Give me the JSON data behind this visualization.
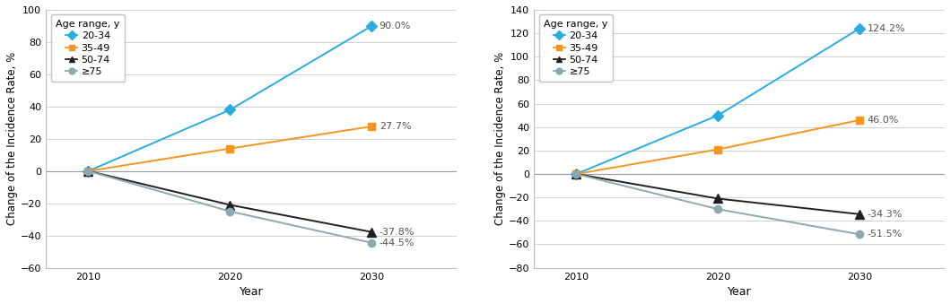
{
  "years": [
    2010,
    2020,
    2030
  ],
  "left_chart": {
    "ylabel": "Change of the Incidence Rate, %",
    "xlabel": "Year",
    "ylim": [
      -60,
      100
    ],
    "yticks": [
      -60,
      -40,
      -20,
      0,
      20,
      40,
      60,
      80,
      100
    ],
    "xlim": [
      2007,
      2036
    ],
    "series": [
      {
        "label": "20-34",
        "values": [
          0,
          38,
          90.0
        ],
        "color": "#29ABE2",
        "marker": "D",
        "marker_size": 6
      },
      {
        "label": "35-49",
        "values": [
          0,
          14,
          27.7
        ],
        "color": "#F7941D",
        "marker": "s",
        "marker_size": 6
      },
      {
        "label": "50-74",
        "values": [
          0,
          -21,
          -37.8
        ],
        "color": "#231F20",
        "marker": "^",
        "marker_size": 7
      },
      {
        "label": "≥75",
        "values": [
          0,
          -25,
          -44.5
        ],
        "color": "#8DA9B0",
        "marker": "o",
        "marker_size": 6
      }
    ],
    "annotations": [
      {
        "text": "90.0%",
        "y": 90.0
      },
      {
        "text": "27.7%",
        "y": 27.7
      },
      {
        "text": "-37.8%",
        "y": -37.8
      },
      {
        "text": "-44.5%",
        "y": -44.5
      }
    ]
  },
  "right_chart": {
    "ylabel": "Change of the Incidence Rate, %",
    "xlabel": "Year",
    "ylim": [
      -80,
      140
    ],
    "yticks": [
      -80,
      -60,
      -40,
      -20,
      0,
      20,
      40,
      60,
      80,
      100,
      120,
      140
    ],
    "xlim": [
      2007,
      2036
    ],
    "series": [
      {
        "label": "20-34",
        "values": [
          0,
          50,
          124.2
        ],
        "color": "#29ABE2",
        "marker": "D",
        "marker_size": 6
      },
      {
        "label": "35-49",
        "values": [
          0,
          21,
          46.0
        ],
        "color": "#F7941D",
        "marker": "s",
        "marker_size": 6
      },
      {
        "label": "50-74",
        "values": [
          0,
          -21,
          -34.3
        ],
        "color": "#231F20",
        "marker": "^",
        "marker_size": 7
      },
      {
        "label": "≥75",
        "values": [
          0,
          -30,
          -51.5
        ],
        "color": "#8DA9B0",
        "marker": "o",
        "marker_size": 6
      }
    ],
    "annotations": [
      {
        "text": "124.2%",
        "y": 124.2
      },
      {
        "text": "46.0%",
        "y": 46.0
      },
      {
        "text": "-34.3%",
        "y": -34.3
      },
      {
        "text": "-51.5%",
        "y": -51.5
      }
    ]
  },
  "legend_title": "Age range, y",
  "legend_labels": [
    "20-34",
    "35-49",
    "50-74",
    "≥75"
  ],
  "legend_colors": [
    "#29ABE2",
    "#F7941D",
    "#231F20",
    "#8DA9B0"
  ],
  "legend_markers": [
    "D",
    "s",
    "^",
    "o"
  ],
  "background_color": "#FFFFFF",
  "grid_color": "#D0D0D0",
  "zero_line_color": "#999999",
  "font_size_ticks": 8,
  "font_size_label": 9,
  "font_size_legend": 8,
  "font_size_annot": 8
}
